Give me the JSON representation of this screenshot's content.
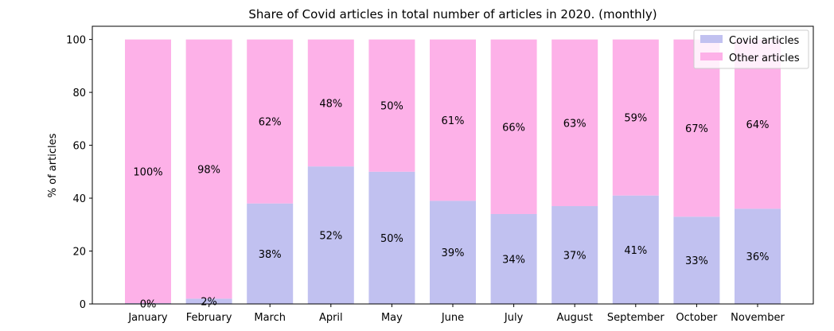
{
  "chart_data": {
    "type": "bar",
    "stacked": true,
    "title": "Share of Covid articles in total number of articles in 2020. (monthly)",
    "xlabel": "",
    "ylabel": "% of articles",
    "ylim": [
      0,
      105
    ],
    "yticks": [
      0,
      20,
      40,
      60,
      80,
      100
    ],
    "categories": [
      "January",
      "February",
      "March",
      "April",
      "May",
      "June",
      "July",
      "August",
      "September",
      "October",
      "November"
    ],
    "series": [
      {
        "name": "Covid articles",
        "color": "#c1c1f0",
        "values": [
          0.3,
          2,
          38,
          52,
          50,
          39,
          34,
          37,
          41,
          33,
          36
        ],
        "labels": [
          "0%",
          "2%",
          "38%",
          "52%",
          "50%",
          "39%",
          "34%",
          "37%",
          "41%",
          "33%",
          "36%"
        ]
      },
      {
        "name": "Other articles",
        "color": "#fdb1e8",
        "values": [
          99.7,
          98,
          62,
          48,
          50,
          61,
          66,
          63,
          59,
          67,
          64
        ],
        "labels": [
          "100%",
          "98%",
          "62%",
          "48%",
          "50%",
          "61%",
          "66%",
          "63%",
          "59%",
          "67%",
          "64%"
        ]
      }
    ],
    "legend_position": "top-right",
    "grid": false
  }
}
